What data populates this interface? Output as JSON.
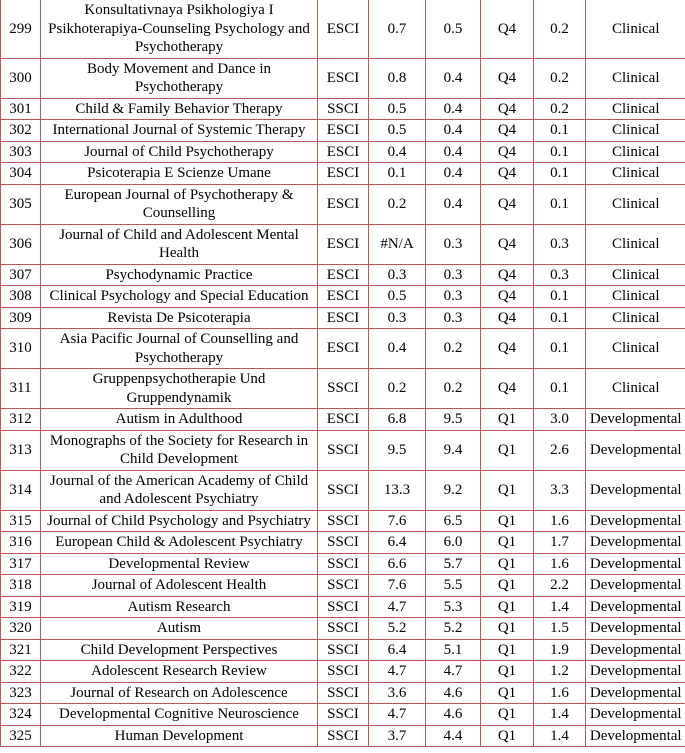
{
  "colors": {
    "table_border": "#bf5654",
    "text": "#000000",
    "background": "#ffffff"
  },
  "table": {
    "rows": [
      [
        "299",
        "Konsultativnaya Psikhologiya I Psikhoterapiya-Counseling Psychology and Psychotherapy",
        "ESCI",
        "0.7",
        "0.5",
        "Q4",
        "0.2",
        "Clinical"
      ],
      [
        "300",
        "Body Movement and Dance in Psychotherapy",
        "ESCI",
        "0.8",
        "0.4",
        "Q4",
        "0.2",
        "Clinical"
      ],
      [
        "301",
        "Child & Family Behavior Therapy",
        "SSCI",
        "0.5",
        "0.4",
        "Q4",
        "0.2",
        "Clinical"
      ],
      [
        "302",
        "International Journal of Systemic Therapy",
        "ESCI",
        "0.5",
        "0.4",
        "Q4",
        "0.1",
        "Clinical"
      ],
      [
        "303",
        "Journal of Child Psychotherapy",
        "ESCI",
        "0.4",
        "0.4",
        "Q4",
        "0.1",
        "Clinical"
      ],
      [
        "304",
        "Psicoterapia E Scienze Umane",
        "ESCI",
        "0.1",
        "0.4",
        "Q4",
        "0.1",
        "Clinical"
      ],
      [
        "305",
        "European Journal of Psychotherapy & Counselling",
        "ESCI",
        "0.2",
        "0.4",
        "Q4",
        "0.1",
        "Clinical"
      ],
      [
        "306",
        "Journal of Child and Adolescent Mental Health",
        "ESCI",
        "#N/A",
        "0.3",
        "Q4",
        "0.3",
        "Clinical"
      ],
      [
        "307",
        "Psychodynamic Practice",
        "ESCI",
        "0.3",
        "0.3",
        "Q4",
        "0.3",
        "Clinical"
      ],
      [
        "308",
        "Clinical Psychology and Special Education",
        "ESCI",
        "0.5",
        "0.3",
        "Q4",
        "0.1",
        "Clinical"
      ],
      [
        "309",
        "Revista De Psicoterapia",
        "ESCI",
        "0.3",
        "0.3",
        "Q4",
        "0.1",
        "Clinical"
      ],
      [
        "310",
        "Asia Pacific Journal of Counselling and Psychotherapy",
        "ESCI",
        "0.4",
        "0.2",
        "Q4",
        "0.1",
        "Clinical"
      ],
      [
        "311",
        "Gruppenpsychotherapie Und Gruppendynamik",
        "SSCI",
        "0.2",
        "0.2",
        "Q4",
        "0.1",
        "Clinical"
      ],
      [
        "312",
        "Autism in Adulthood",
        "ESCI",
        "6.8",
        "9.5",
        "Q1",
        "3.0",
        "Developmental"
      ],
      [
        "313",
        "Monographs of the Society for Research in Child Development",
        "SSCI",
        "9.5",
        "9.4",
        "Q1",
        "2.6",
        "Developmental"
      ],
      [
        "314",
        "Journal of the American Academy of Child and Adolescent Psychiatry",
        "SSCI",
        "13.3",
        "9.2",
        "Q1",
        "3.3",
        "Developmental"
      ],
      [
        "315",
        "Journal of Child Psychology and Psychiatry",
        "SSCI",
        "7.6",
        "6.5",
        "Q1",
        "1.6",
        "Developmental"
      ],
      [
        "316",
        "European Child & Adolescent Psychiatry",
        "SSCI",
        "6.4",
        "6.0",
        "Q1",
        "1.7",
        "Developmental"
      ],
      [
        "317",
        "Developmental Review",
        "SSCI",
        "6.6",
        "5.7",
        "Q1",
        "1.6",
        "Developmental"
      ],
      [
        "318",
        "Journal of Adolescent Health",
        "SSCI",
        "7.6",
        "5.5",
        "Q1",
        "2.2",
        "Developmental"
      ],
      [
        "319",
        "Autism Research",
        "SSCI",
        "4.7",
        "5.3",
        "Q1",
        "1.4",
        "Developmental"
      ],
      [
        "320",
        "Autism",
        "SSCI",
        "5.2",
        "5.2",
        "Q1",
        "1.5",
        "Developmental"
      ],
      [
        "321",
        "Child Development Perspectives",
        "SSCI",
        "6.4",
        "5.1",
        "Q1",
        "1.9",
        "Developmental"
      ],
      [
        "322",
        "Adolescent Research Review",
        "SSCI",
        "4.7",
        "4.7",
        "Q1",
        "1.2",
        "Developmental"
      ],
      [
        "323",
        "Journal of Research on Adolescence",
        "SSCI",
        "3.6",
        "4.6",
        "Q1",
        "1.6",
        "Developmental"
      ],
      [
        "324",
        "Developmental Cognitive Neuroscience",
        "SSCI",
        "4.7",
        "4.6",
        "Q1",
        "1.4",
        "Developmental"
      ],
      [
        "325",
        "Human Development",
        "SSCI",
        "3.7",
        "4.4",
        "Q1",
        "1.4",
        "Developmental"
      ]
    ]
  }
}
